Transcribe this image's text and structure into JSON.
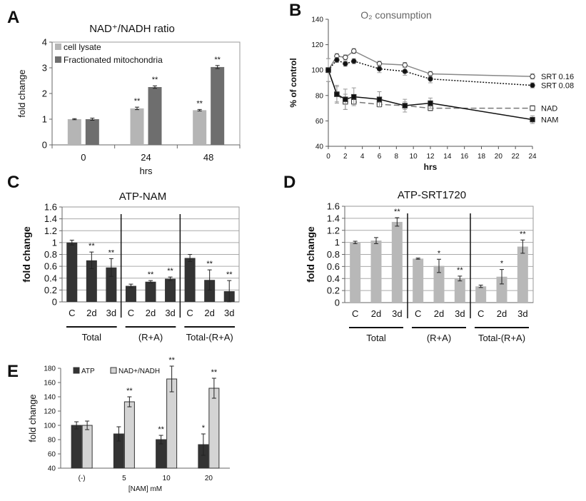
{
  "panel_labels": [
    "A",
    "B",
    "C",
    "D",
    "E"
  ],
  "chart_data": [
    {
      "panel": "A",
      "type": "bar",
      "title": "NAD⁺/NADH ratio",
      "xlabel": "hrs",
      "ylabel": "fold change",
      "ylim": [
        0,
        4
      ],
      "yticks": [
        "0",
        "1",
        "2",
        "3",
        "4"
      ],
      "grid": false,
      "legend": "top-left",
      "categories": [
        "0",
        "24",
        "48"
      ],
      "series": [
        {
          "name": "cell lysate",
          "color": "#b5b5b5",
          "values": [
            1.0,
            1.42,
            1.35
          ],
          "errors": [
            0.02,
            0.05,
            0.03
          ],
          "significance": [
            "",
            "**",
            "**"
          ]
        },
        {
          "name": "Fractionated mitochondria",
          "color": "#6e6e6e",
          "values": [
            1.0,
            2.25,
            3.03
          ],
          "errors": [
            0.04,
            0.05,
            0.06
          ],
          "significance": [
            "",
            "**",
            "**"
          ]
        }
      ]
    },
    {
      "panel": "B",
      "type": "line",
      "title": "O₂ consumption",
      "xlabel": "hrs",
      "ylabel": "% of control",
      "xlim": [
        0,
        24
      ],
      "ylim": [
        40,
        140
      ],
      "xticks": [
        "0",
        "2",
        "4",
        "6",
        "8",
        "10",
        "12",
        "14",
        "16",
        "18",
        "20",
        "22",
        "24"
      ],
      "yticks": [
        "40",
        "60",
        "80",
        "100",
        "120",
        "140"
      ],
      "legend": "right (end labels)",
      "x": [
        0,
        1,
        2,
        3,
        6,
        9,
        12,
        24
      ],
      "series": [
        {
          "name": "SRT 0.16",
          "marker": "open-circle",
          "line": "solid",
          "color": "#888888",
          "values": [
            100,
            111,
            110,
            115,
            105,
            104,
            97,
            95
          ],
          "errors": [
            2,
            2,
            2,
            2,
            2,
            2,
            2,
            2
          ]
        },
        {
          "name": "SRT 0.08",
          "marker": "filled-circle",
          "line": "dotted",
          "color": "#111111",
          "values": [
            100,
            108,
            105,
            107,
            101,
            99,
            93,
            88
          ],
          "errors": [
            2,
            2,
            2,
            2,
            3,
            3,
            3,
            2
          ]
        },
        {
          "name": "NAD",
          "marker": "open-square",
          "line": "dashed",
          "color": "#777777",
          "values": [
            100,
            81,
            75,
            75,
            73,
            72,
            70,
            70
          ],
          "errors": [
            9,
            6,
            6,
            3,
            2,
            3,
            2,
            2
          ]
        },
        {
          "name": "NAM",
          "marker": "filled-square",
          "line": "solid",
          "color": "#111111",
          "values": [
            100,
            81,
            77,
            79,
            77,
            72,
            74,
            61
          ],
          "errors": [
            9,
            7,
            8,
            7,
            6,
            5,
            4,
            3
          ]
        }
      ]
    },
    {
      "panel": "C",
      "type": "bar",
      "title": "ATP-NAM",
      "ylabel": "fold change",
      "ylim": [
        0,
        1.6
      ],
      "yticks": [
        "0",
        "0.2",
        "0.4",
        "0.6",
        "0.8",
        "1",
        "1.2",
        "1.4",
        "1.6"
      ],
      "grid": true,
      "categories": [
        "C",
        "2d",
        "3d",
        "C",
        "2d",
        "3d",
        "C",
        "2d",
        "3d"
      ],
      "groups": [
        "Total",
        "(R+A)",
        "Total-(R+A)"
      ],
      "series": [
        {
          "color": "#333333",
          "values": [
            1.0,
            0.7,
            0.58,
            0.27,
            0.34,
            0.39,
            0.74,
            0.37,
            0.18
          ],
          "errors": [
            0.04,
            0.14,
            0.15,
            0.03,
            0.02,
            0.03,
            0.06,
            0.17,
            0.18
          ],
          "significance": [
            "",
            "**",
            "**",
            "",
            "**",
            "**",
            "",
            "**",
            "**"
          ]
        }
      ]
    },
    {
      "panel": "D",
      "type": "bar",
      "title": "ATP-SRT1720",
      "ylabel": "fold change",
      "ylim": [
        0,
        1.6
      ],
      "yticks": [
        "0",
        "0.2",
        "0.4",
        "0.6",
        "0.8",
        "1",
        "1.2",
        "1.4",
        "1.6"
      ],
      "grid": true,
      "categories": [
        "C",
        "2d",
        "3d",
        "C",
        "2d",
        "3d",
        "C",
        "2d",
        "3d"
      ],
      "groups": [
        "Total",
        "(R+A)",
        "Total-(R+A)"
      ],
      "series": [
        {
          "color": "#b8b8b8",
          "values": [
            1.0,
            1.03,
            1.34,
            0.73,
            0.61,
            0.4,
            0.27,
            0.43,
            0.93
          ],
          "errors": [
            0.02,
            0.05,
            0.07,
            0.01,
            0.11,
            0.04,
            0.02,
            0.12,
            0.11
          ],
          "significance": [
            "",
            "",
            "**",
            "",
            "*",
            "**",
            "",
            "*",
            "**"
          ]
        }
      ]
    },
    {
      "panel": "E",
      "type": "bar",
      "xlabel": "[NAM] mM",
      "ylabel": "fold change",
      "ylim": [
        40,
        180
      ],
      "yticks": [
        "40",
        "60",
        "80",
        "100",
        "120",
        "140",
        "160",
        "180"
      ],
      "grid": false,
      "legend": "top",
      "categories": [
        "(-)",
        "5",
        "10",
        "20"
      ],
      "series": [
        {
          "name": "ATP",
          "color": "#333333",
          "values": [
            100,
            88,
            80,
            73
          ],
          "errors": [
            5,
            10,
            6,
            15
          ],
          "significance": [
            "",
            "",
            "**",
            "*"
          ]
        },
        {
          "name": "NAD+/NADH",
          "color": "#d4d4d4",
          "values": [
            100,
            133,
            165,
            152
          ],
          "errors": [
            6,
            7,
            18,
            14
          ],
          "significance": [
            "",
            "**",
            "**",
            "**"
          ]
        }
      ]
    }
  ]
}
